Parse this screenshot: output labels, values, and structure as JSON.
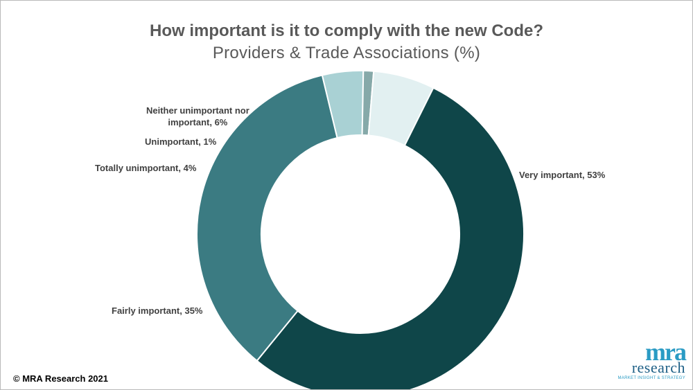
{
  "chart_data": {
    "type": "pie",
    "donut": true,
    "title": "How important is it to comply with the new Code?",
    "subtitle": "Providers & Trade Associations (%)",
    "slices": [
      {
        "label": "Very important",
        "value": 53,
        "display": "Very important, 53%",
        "color": "#0f4649"
      },
      {
        "label": "Fairly important",
        "value": 35,
        "display": "Fairly important, 35%",
        "color": "#3b7b82"
      },
      {
        "label": "Totally unimportant",
        "value": 4,
        "display": "Totally unimportant, 4%",
        "color": "#a9d1d4"
      },
      {
        "label": "Unimportant",
        "value": 1,
        "display": "Unimportant, 1%",
        "color": "#86a9a9"
      },
      {
        "label": "Neither unimportant nor important",
        "value": 6,
        "display_lines": [
          "Neither unimportant nor",
          "important, 6%"
        ],
        "color": "#e2f0f1"
      }
    ]
  },
  "footer": {
    "copyright": "© MRA Research 2021"
  },
  "logo": {
    "mark": "mra",
    "word": "research",
    "tagline": "MARKET INSIGHT & STRATEGY"
  }
}
